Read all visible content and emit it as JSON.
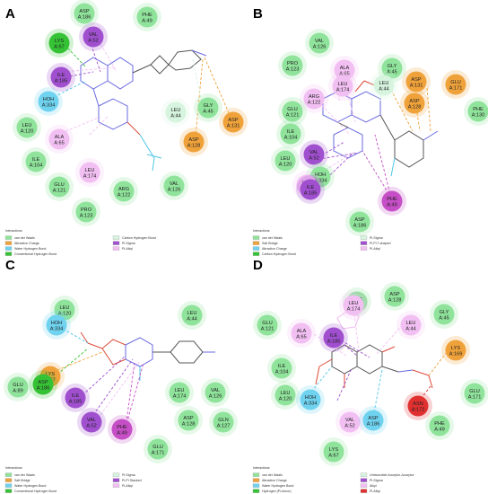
{
  "colors": {
    "vdw": "#8fe39b",
    "hbond": "#35c235",
    "carbon_hbond": "#d6f4de",
    "attractive": "#f0a23a",
    "salt": "#f0a23a",
    "water": "#6fd3f0",
    "pi_sigma": "#a04fcf",
    "pi_alkyl": "#f2bff2",
    "pi_anion": "#f0a23a",
    "unfavorable": "#e03030",
    "pi_pi_t": "#c64ec6",
    "bond_black": "#555555",
    "bond_red": "#dd4a3a",
    "bond_blue": "#6a6ae0",
    "bond_cyan": "#4fc6e6"
  },
  "legend_title": "Interactions",
  "panels": [
    {
      "id": "A",
      "legend": [
        "van der Waals",
        "Attractive Charge",
        "Water Hydrogen Bond",
        "Conventional Hydrogen Bond",
        "Carbon Hydrogen Bond",
        "Pi-Sigma",
        "Pi-Alkyl"
      ],
      "residues": [
        {
          "name": "ASP",
          "num": "A:186",
          "kind": "vdw"
        },
        {
          "name": "PHE",
          "num": "A:49",
          "kind": "vdw"
        },
        {
          "name": "VAL",
          "num": "A:52",
          "kind": "pi_sigma"
        },
        {
          "name": "LYS",
          "num": "A:67",
          "kind": "hbond"
        },
        {
          "name": "ILE",
          "num": "A:185",
          "kind": "pi_sigma"
        },
        {
          "name": "HOH",
          "num": "A:334",
          "kind": "water"
        },
        {
          "name": "LEU",
          "num": "A:120",
          "kind": "vdw"
        },
        {
          "name": "ALA",
          "num": "A:65",
          "kind": "pi_alkyl"
        },
        {
          "name": "ILE",
          "num": "A:104",
          "kind": "vdw"
        },
        {
          "name": "GLU",
          "num": "A:121",
          "kind": "vdw"
        },
        {
          "name": "LEU",
          "num": "A:174",
          "kind": "pi_alkyl"
        },
        {
          "name": "ARG",
          "num": "A:122",
          "kind": "vdw"
        },
        {
          "name": "PRO",
          "num": "A:123",
          "kind": "vdw"
        },
        {
          "name": "VAL",
          "num": "A:126",
          "kind": "vdw"
        },
        {
          "name": "LEU",
          "num": "A:44",
          "kind": "carbon_hbond"
        },
        {
          "name": "GLY",
          "num": "A:45",
          "kind": "vdw"
        },
        {
          "name": "ASP",
          "num": "A:131",
          "kind": "attractive"
        },
        {
          "name": "ASP",
          "num": "A:128",
          "kind": "attractive"
        }
      ]
    },
    {
      "id": "B",
      "legend": [
        "van der Waals",
        "Salt Bridge",
        "Attractive Charge",
        "Carbon Hydrogen Bond",
        "Pi-Sigma",
        "Pi-Pi T-shaped",
        "Pi-Alkyl"
      ],
      "residues": [
        {
          "name": "VAL",
          "num": "A:126",
          "kind": "vdw"
        },
        {
          "name": "PRO",
          "num": "A:123",
          "kind": "vdw"
        },
        {
          "name": "ALA",
          "num": "A:65",
          "kind": "pi_alkyl"
        },
        {
          "name": "GLY",
          "num": "A:45",
          "kind": "vdw"
        },
        {
          "name": "LEU",
          "num": "A:44",
          "kind": "carbon_hbond"
        },
        {
          "name": "ASP",
          "num": "A:131",
          "kind": "attractive"
        },
        {
          "name": "GLU",
          "num": "A:171",
          "kind": "attractive"
        },
        {
          "name": "LEU",
          "num": "A:174",
          "kind": "pi_alkyl"
        },
        {
          "name": "ARG",
          "num": "A:122",
          "kind": "pi_alkyl"
        },
        {
          "name": "ASP",
          "num": "A:128",
          "kind": "attractive"
        },
        {
          "name": "PHE",
          "num": "A:130",
          "kind": "vdw"
        },
        {
          "name": "GLU",
          "num": "A:121",
          "kind": "vdw"
        },
        {
          "name": "ILE",
          "num": "A:104",
          "kind": "vdw"
        },
        {
          "name": "LEU",
          "num": "A:120",
          "kind": "vdw"
        },
        {
          "name": "VAL",
          "num": "A:52",
          "kind": "pi_sigma"
        },
        {
          "name": "HOH",
          "num": "A:334",
          "kind": "vdw"
        },
        {
          "name": "LYS",
          "num": "A:67",
          "kind": "pi_alkyl"
        },
        {
          "name": "ILE",
          "num": "A:185",
          "kind": "pi_sigma"
        },
        {
          "name": "PHE",
          "num": "A:49",
          "kind": "pi_pi_t"
        },
        {
          "name": "ASP",
          "num": "A:186",
          "kind": "vdw"
        }
      ]
    },
    {
      "id": "C",
      "legend": [
        "van der Waals",
        "Salt Bridge",
        "Water Hydrogen Bond",
        "Conventional Hydrogen Bond",
        "Pi-Sigma",
        "Pi-Pi Stacked",
        "Pi-Alkyl"
      ],
      "residues": [
        {
          "name": "LEU",
          "num": "A:120",
          "kind": "vdw"
        },
        {
          "name": "LEU",
          "num": "A:44",
          "kind": "vdw"
        },
        {
          "name": "HOH",
          "num": "A:334",
          "kind": "water"
        },
        {
          "name": "LYS",
          "num": "A:67",
          "kind": "attractive"
        },
        {
          "name": "GLU",
          "num": "A:89",
          "kind": "vdw"
        },
        {
          "name": "ASP",
          "num": "A:186",
          "kind": "hbond"
        },
        {
          "name": "ILE",
          "num": "A:185",
          "kind": "pi_sigma"
        },
        {
          "name": "LEU",
          "num": "A:174",
          "kind": "vdw"
        },
        {
          "name": "VAL",
          "num": "A:126",
          "kind": "vdw"
        },
        {
          "name": "VAL",
          "num": "A:52",
          "kind": "pi_sigma"
        },
        {
          "name": "ASP",
          "num": "A:128",
          "kind": "vdw"
        },
        {
          "name": "GLN",
          "num": "A:127",
          "kind": "vdw"
        },
        {
          "name": "PHE",
          "num": "A:49",
          "kind": "pi_pi_t"
        },
        {
          "name": "GLU",
          "num": "A:171",
          "kind": "vdw"
        }
      ]
    },
    {
      "id": "D",
      "legend": [
        "van der Waals",
        "Attractive Charge",
        "Water Hydrogen Bond",
        "Hydrogen (Pi-donor)",
        "Unfavorable Acceptor-Acceptor",
        "Pi-Sigma",
        "Alkyl",
        "Pi-Alkyl"
      ],
      "residues": [
        {
          "name": "ARG",
          "num": "A:122",
          "kind": "vdw"
        },
        {
          "name": "ASP",
          "num": "A:128",
          "kind": "vdw"
        },
        {
          "name": "LEU",
          "num": "A:174",
          "kind": "pi_alkyl"
        },
        {
          "name": "GLY",
          "num": "A:45",
          "kind": "vdw"
        },
        {
          "name": "GLU",
          "num": "A:121",
          "kind": "vdw"
        },
        {
          "name": "LEU",
          "num": "A:44",
          "kind": "pi_alkyl"
        },
        {
          "name": "ALA",
          "num": "A:65",
          "kind": "pi_alkyl"
        },
        {
          "name": "ILE",
          "num": "A:185",
          "kind": "pi_sigma"
        },
        {
          "name": "LYS",
          "num": "A:169",
          "kind": "attractive"
        },
        {
          "name": "ILE",
          "num": "A:104",
          "kind": "vdw"
        },
        {
          "name": "LEU",
          "num": "A:120",
          "kind": "vdw"
        },
        {
          "name": "GLU",
          "num": "A:171",
          "kind": "vdw"
        },
        {
          "name": "HOH",
          "num": "A:334",
          "kind": "water"
        },
        {
          "name": "VAL",
          "num": "A:52",
          "kind": "pi_alkyl"
        },
        {
          "name": "ASN",
          "num": "A:172",
          "kind": "unfavorable"
        },
        {
          "name": "PHE",
          "num": "A:49",
          "kind": "vdw"
        },
        {
          "name": "ASP",
          "num": "A:186",
          "kind": "water"
        },
        {
          "name": "LYS",
          "num": "A:67",
          "kind": "vdw"
        }
      ]
    }
  ]
}
